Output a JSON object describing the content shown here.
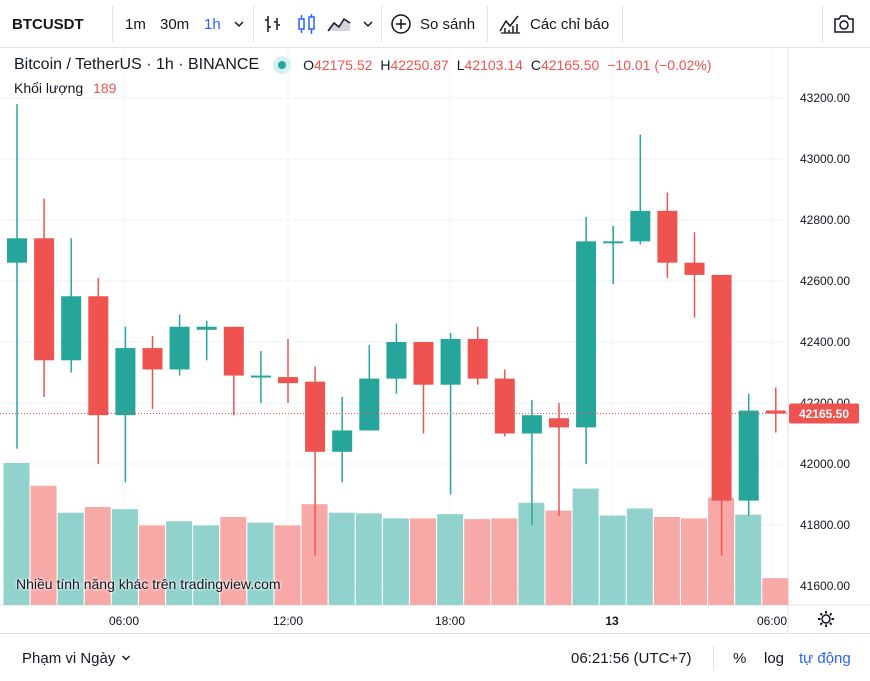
{
  "toolbar": {
    "symbol": "BTCUSDT",
    "intervals": [
      "1m",
      "30m",
      "1h"
    ],
    "active_interval": "1h",
    "compare_label": "So sánh",
    "indicators_label": "Các chỉ báo"
  },
  "legend": {
    "title": "Bitcoin / TetherUS · 1h · BINANCE",
    "open_key": "O",
    "open": "42175.52",
    "high_key": "H",
    "high": "42250.87",
    "low_key": "L",
    "low": "42103.14",
    "close_key": "C",
    "close": "42165.50",
    "change": "−10.01 (−0.02%)",
    "volume_label": "Khối lượng",
    "volume_value": "189"
  },
  "watermark": "Nhiều tính năng khác trên tradingview.com",
  "price_axis": {
    "ticks": [
      "43200.00",
      "43000.00",
      "42800.00",
      "42600.00",
      "42400.00",
      "42200.00",
      "42000.00",
      "41800.00",
      "41600.00"
    ],
    "current_price": "42165.50"
  },
  "time_axis": {
    "ticks": [
      "06:00",
      "12:00",
      "18:00",
      "13",
      "06:00"
    ]
  },
  "footer": {
    "range_label": "Phạm vi Ngày",
    "clock": "06:21:56 (UTC+7)",
    "percent": "%",
    "log": "log",
    "auto": "tự động"
  },
  "colors": {
    "up": "#26a69a",
    "down": "#ef5350",
    "up_volume": "#92d2cc",
    "down_volume": "#f7a9a7",
    "accent": "#2962ff"
  },
  "chart_data": {
    "type": "candlestick",
    "symbol": "BTCUSDT",
    "interval": "1h",
    "ylim": [
      41550,
      43320
    ],
    "candles": [
      {
        "o": 42660,
        "h": 43180,
        "l": 42050,
        "c": 42740,
        "v": 1000
      },
      {
        "o": 42740,
        "h": 42870,
        "l": 42220,
        "c": 42340,
        "v": 840
      },
      {
        "o": 42340,
        "h": 42740,
        "l": 42300,
        "c": 42550,
        "v": 650
      },
      {
        "o": 42550,
        "h": 42610,
        "l": 42000,
        "c": 42160,
        "v": 690
      },
      {
        "o": 42160,
        "h": 42450,
        "l": 41940,
        "c": 42380,
        "v": 675
      },
      {
        "o": 42380,
        "h": 42420,
        "l": 42180,
        "c": 42310,
        "v": 560
      },
      {
        "o": 42310,
        "h": 42490,
        "l": 42290,
        "c": 42450,
        "v": 590
      },
      {
        "o": 42440,
        "h": 42470,
        "l": 42340,
        "c": 42450,
        "v": 560
      },
      {
        "o": 42450,
        "h": 42450,
        "l": 42160,
        "c": 42290,
        "v": 620
      },
      {
        "o": 42290,
        "h": 42370,
        "l": 42200,
        "c": 42290,
        "v": 580
      },
      {
        "o": 42285,
        "h": 42410,
        "l": 42200,
        "c": 42265,
        "v": 560
      },
      {
        "o": 42270,
        "h": 42320,
        "l": 41700,
        "c": 42040,
        "v": 710
      },
      {
        "o": 42040,
        "h": 42220,
        "l": 41940,
        "c": 42110,
        "v": 650
      },
      {
        "o": 42110,
        "h": 42390,
        "l": 42110,
        "c": 42280,
        "v": 645
      },
      {
        "o": 42280,
        "h": 42460,
        "l": 42230,
        "c": 42400,
        "v": 610
      },
      {
        "o": 42400,
        "h": 42400,
        "l": 42100,
        "c": 42260,
        "v": 610
      },
      {
        "o": 42260,
        "h": 42430,
        "l": 41900,
        "c": 42410,
        "v": 640
      },
      {
        "o": 42410,
        "h": 42450,
        "l": 42260,
        "c": 42280,
        "v": 605
      },
      {
        "o": 42280,
        "h": 42310,
        "l": 42090,
        "c": 42100,
        "v": 610
      },
      {
        "o": 42100,
        "h": 42210,
        "l": 41800,
        "c": 42160,
        "v": 720
      },
      {
        "o": 42150,
        "h": 42200,
        "l": 41830,
        "c": 42120,
        "v": 665
      },
      {
        "o": 42120,
        "h": 42810,
        "l": 42000,
        "c": 42730,
        "v": 820
      },
      {
        "o": 42730,
        "h": 42780,
        "l": 42590,
        "c": 42730,
        "v": 630
      },
      {
        "o": 42730,
        "h": 43080,
        "l": 42720,
        "c": 42830,
        "v": 680
      },
      {
        "o": 42830,
        "h": 42890,
        "l": 42610,
        "c": 42660,
        "v": 620
      },
      {
        "o": 42660,
        "h": 42760,
        "l": 42480,
        "c": 42620,
        "v": 610
      },
      {
        "o": 42620,
        "h": 42620,
        "l": 41700,
        "c": 41880,
        "v": 755
      },
      {
        "o": 41880,
        "h": 42230,
        "l": 41830,
        "c": 42175,
        "v": 636
      },
      {
        "o": 42175.52,
        "h": 42250.87,
        "l": 42103.14,
        "c": 42165.5,
        "v": 189
      }
    ]
  }
}
